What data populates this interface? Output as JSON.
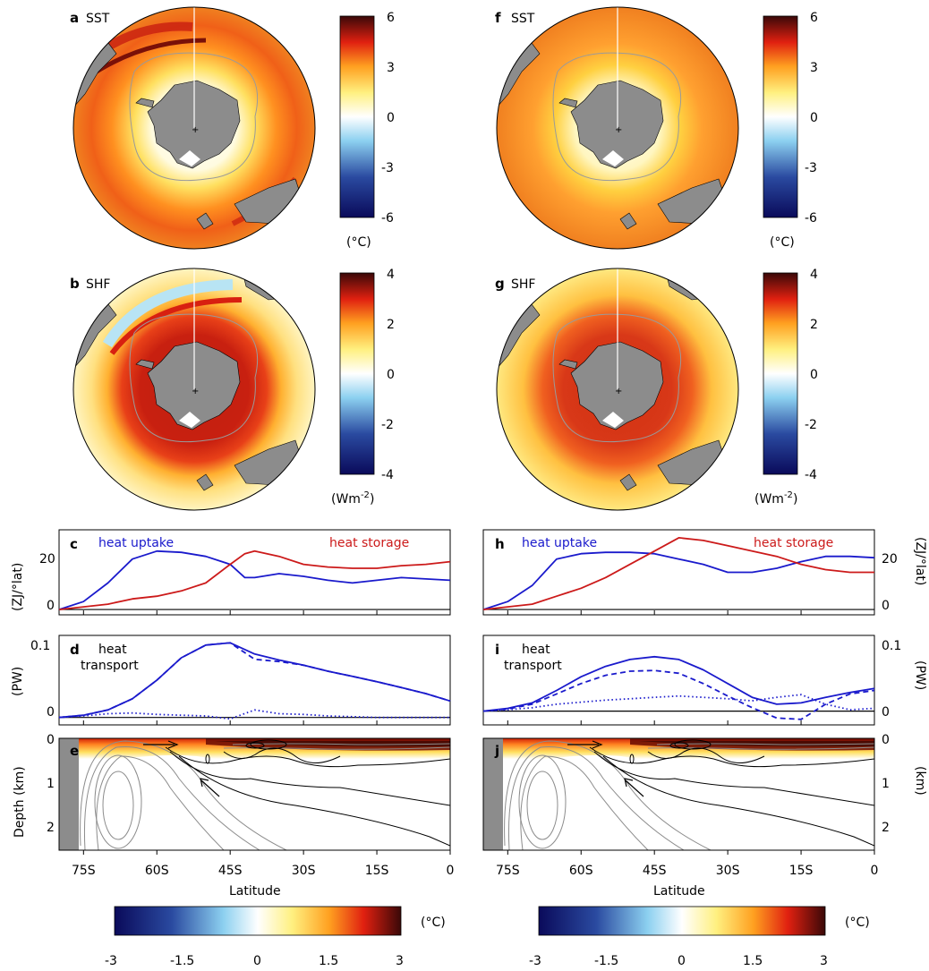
{
  "colors": {
    "heat_uptake": "#1a1acc",
    "heat_storage": "#cc1a1a",
    "transport": "#1a1acc",
    "land": "#8c8c8c"
  },
  "panels": {
    "a": {
      "letter": "a",
      "label": "SST"
    },
    "b": {
      "letter": "b",
      "label": "SHF"
    },
    "f": {
      "letter": "f",
      "label": "SST"
    },
    "g": {
      "letter": "g",
      "label": "SHF"
    },
    "c": {
      "letter": "c"
    },
    "d": {
      "letter": "d"
    },
    "e": {
      "letter": "e"
    },
    "h": {
      "letter": "h"
    },
    "i": {
      "letter": "i"
    },
    "j": {
      "letter": "j"
    }
  },
  "colorbars": {
    "sst": {
      "ticks": [
        "6",
        "3",
        "0",
        "-3",
        "-6"
      ],
      "unit": "(°C)"
    },
    "shf": {
      "ticks": [
        "4",
        "2",
        "0",
        "-2",
        "-4"
      ],
      "unit_base": "(Wm",
      "unit_sup": "-2",
      "unit_end": ")"
    },
    "bottom": {
      "ticks": [
        "-3",
        "-1.5",
        "0",
        "1.5",
        "3"
      ],
      "unit": "(°C)"
    }
  },
  "axes": {
    "zj_unit": "(ZJ/°lat)",
    "pw_unit": "(PW)",
    "depth_label": "Depth (km)",
    "km_unit": "(km)",
    "xlabel": "Latitude"
  },
  "chart_data": [
    {
      "panel": "c",
      "type": "line",
      "x": [
        -80,
        -75,
        -70,
        -65,
        -60,
        -55,
        -50,
        -45,
        -42,
        -40,
        -35,
        -30,
        -25,
        -20,
        -15,
        -10,
        -5,
        0
      ],
      "series": [
        {
          "name": "heat uptake",
          "values": [
            0,
            3,
            10,
            19,
            22,
            21.5,
            20,
            17,
            12,
            12,
            13.5,
            12.5,
            11,
            10,
            11,
            12,
            11.5,
            11
          ]
        },
        {
          "name": "heat storage",
          "values": [
            0,
            1,
            2,
            4,
            5,
            7,
            10,
            17,
            21,
            22,
            20,
            17,
            16,
            15.5,
            15.5,
            16.5,
            17,
            18
          ]
        }
      ],
      "ylim": [
        -2,
        30
      ],
      "yticks": [
        "20",
        "0"
      ]
    },
    {
      "panel": "h",
      "type": "line",
      "x": [
        -80,
        -75,
        -70,
        -65,
        -60,
        -55,
        -50,
        -45,
        -40,
        -35,
        -30,
        -25,
        -20,
        -15,
        -10,
        -5,
        0
      ],
      "series": [
        {
          "name": "heat uptake",
          "values": [
            0,
            3,
            9,
            19,
            21,
            21.5,
            21.5,
            21,
            19,
            17,
            14,
            14,
            15.5,
            18,
            20,
            20,
            19.5
          ]
        },
        {
          "name": "heat storage",
          "values": [
            0,
            1,
            2,
            5,
            8,
            12,
            17,
            22,
            27,
            26,
            24,
            22,
            20,
            17,
            15,
            14,
            14
          ]
        }
      ],
      "ylim": [
        -2,
        30
      ],
      "yticks": [
        "20",
        "0"
      ]
    },
    {
      "panel": "d",
      "type": "line",
      "title_line1": "heat",
      "title_line2": "transport",
      "x": [
        -80,
        -75,
        -70,
        -65,
        -60,
        -55,
        -50,
        -45,
        -40,
        -35,
        -30,
        -25,
        -20,
        -15,
        -10,
        -5,
        0
      ],
      "series": [
        {
          "style": "solid",
          "values": [
            0,
            0.003,
            0.01,
            0.025,
            0.05,
            0.08,
            0.097,
            0.1,
            0.085,
            0.077,
            0.07,
            0.062,
            0.055,
            0.048,
            0.04,
            0.032,
            0.022
          ]
        },
        {
          "style": "dashed",
          "values": [
            0,
            0.003,
            0.01,
            0.025,
            0.05,
            0.08,
            0.097,
            0.1,
            0.078,
            0.075,
            0.07,
            0.062,
            0.055,
            0.048,
            0.04,
            0.032,
            0.022
          ]
        },
        {
          "style": "dotted",
          "values": [
            0,
            0.002,
            0.005,
            0.006,
            0.004,
            0.003,
            0.002,
            -0.002,
            0.01,
            0.005,
            0.004,
            0.002,
            0.001,
            0,
            0,
            0,
            0
          ]
        }
      ],
      "ylim": [
        -0.01,
        0.11
      ],
      "yticks": [
        "0.1",
        "0"
      ]
    },
    {
      "panel": "i",
      "type": "line",
      "title_line1": "heat",
      "title_line2": "transport",
      "x": [
        -80,
        -75,
        -70,
        -65,
        -60,
        -55,
        -50,
        -45,
        -40,
        -35,
        -30,
        -25,
        -20,
        -15,
        -10,
        -5,
        0
      ],
      "series": [
        {
          "style": "solid",
          "values": [
            0,
            0.004,
            0.012,
            0.03,
            0.05,
            0.065,
            0.075,
            0.079,
            0.075,
            0.06,
            0.04,
            0.02,
            0.01,
            0.012,
            0.02,
            0.027,
            0.033
          ]
        },
        {
          "style": "dashed",
          "values": [
            0,
            0.003,
            0.01,
            0.025,
            0.04,
            0.052,
            0.058,
            0.059,
            0.055,
            0.04,
            0.022,
            0.005,
            -0.01,
            -0.012,
            0.01,
            0.025,
            0.03
          ]
        },
        {
          "style": "dotted",
          "values": [
            0,
            0.002,
            0.005,
            0.01,
            0.013,
            0.016,
            0.018,
            0.02,
            0.022,
            0.02,
            0.018,
            0.015,
            0.02,
            0.024,
            0.01,
            0.002,
            0.004
          ]
        }
      ],
      "ylim": [
        -0.02,
        0.11
      ],
      "yticks": [
        "0.1",
        "0"
      ]
    },
    {
      "panel": "e",
      "type": "heatmap",
      "x_ticks": [
        "75S",
        "60S",
        "45S",
        "30S",
        "15S",
        "0"
      ],
      "y_ticks": [
        "0",
        "1",
        "2"
      ],
      "xlabel": "Latitude"
    },
    {
      "panel": "j",
      "type": "heatmap",
      "x_ticks": [
        "75S",
        "60S",
        "45S",
        "30S",
        "15S",
        "0"
      ],
      "y_ticks": [
        "0",
        "1",
        "2"
      ],
      "xlabel": "Latitude"
    }
  ]
}
